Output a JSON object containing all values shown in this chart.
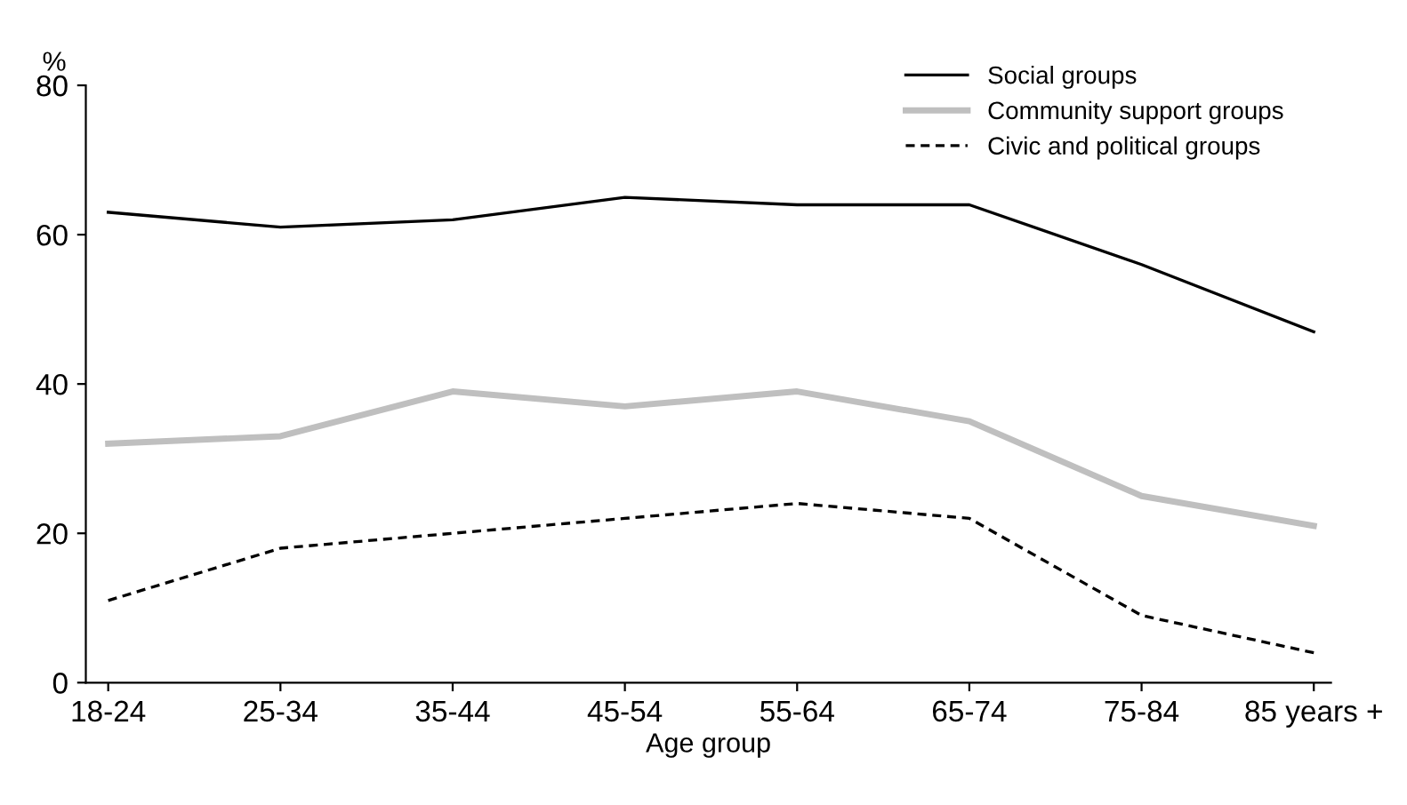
{
  "chart_data": {
    "type": "line",
    "ylabel": "%",
    "xlabel": "Age group",
    "categories": [
      "18-24",
      "25-34",
      "35-44",
      "45-54",
      "55-64",
      "65-74",
      "75-84",
      "85 years +"
    ],
    "series": [
      {
        "name": "Social groups",
        "color": "#000000",
        "line_style": "solid",
        "values": [
          63,
          61,
          62,
          65,
          64,
          64,
          56,
          47
        ]
      },
      {
        "name": "Community support groups",
        "color": "#bfbfbf",
        "line_style": "solid",
        "values": [
          32,
          33,
          39,
          37,
          39,
          35,
          25,
          21
        ]
      },
      {
        "name": "Civic and political groups",
        "color": "#000000",
        "line_style": "dashed",
        "values": [
          11,
          18,
          20,
          22,
          24,
          22,
          9,
          4
        ]
      }
    ],
    "ylim": [
      0,
      80
    ],
    "yticks": [
      0,
      20,
      40,
      60,
      80
    ],
    "grid": false,
    "legend": "top right",
    "marker": "none"
  }
}
